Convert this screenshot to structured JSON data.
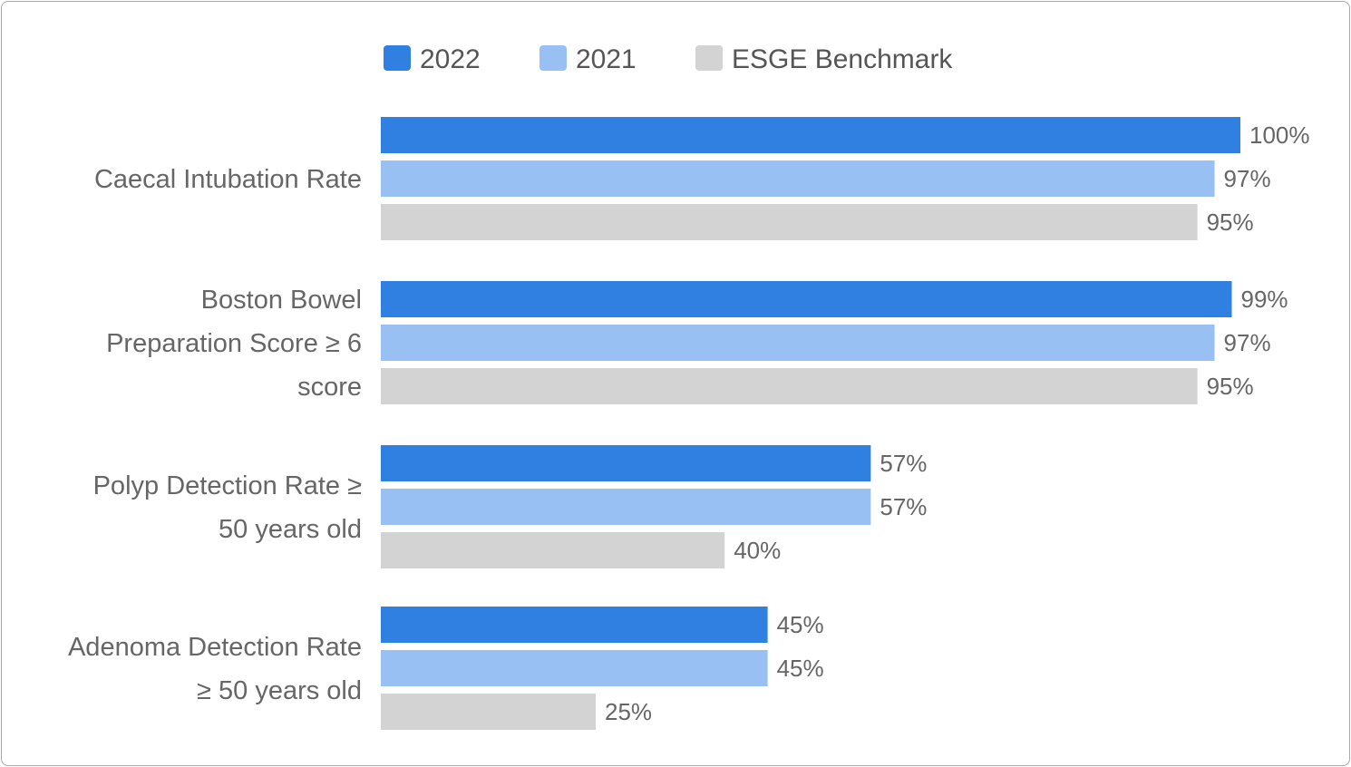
{
  "chart_data": {
    "type": "bar",
    "orientation": "horizontal",
    "categories": [
      [
        "Caecal Intubation Rate"
      ],
      [
        "Boston Bowel",
        "Preparation Score ≥ 6",
        "score"
      ],
      [
        "Polyp Detection Rate ≥",
        "50 years old"
      ],
      [
        "Adenoma Detection Rate",
        "≥ 50 years old"
      ]
    ],
    "series": [
      {
        "name": "2022",
        "color": "#2f80e0",
        "values": [
          100,
          99,
          57,
          45
        ]
      },
      {
        "name": "2021",
        "color": "#99c0f2",
        "values": [
          97,
          97,
          57,
          45
        ]
      },
      {
        "name": "ESGE Benchmark",
        "color": "#d3d3d3",
        "values": [
          95,
          95,
          40,
          25
        ]
      }
    ],
    "value_suffix": "%",
    "xlim": [
      0,
      100
    ],
    "legend_position": "top",
    "grid": false
  }
}
